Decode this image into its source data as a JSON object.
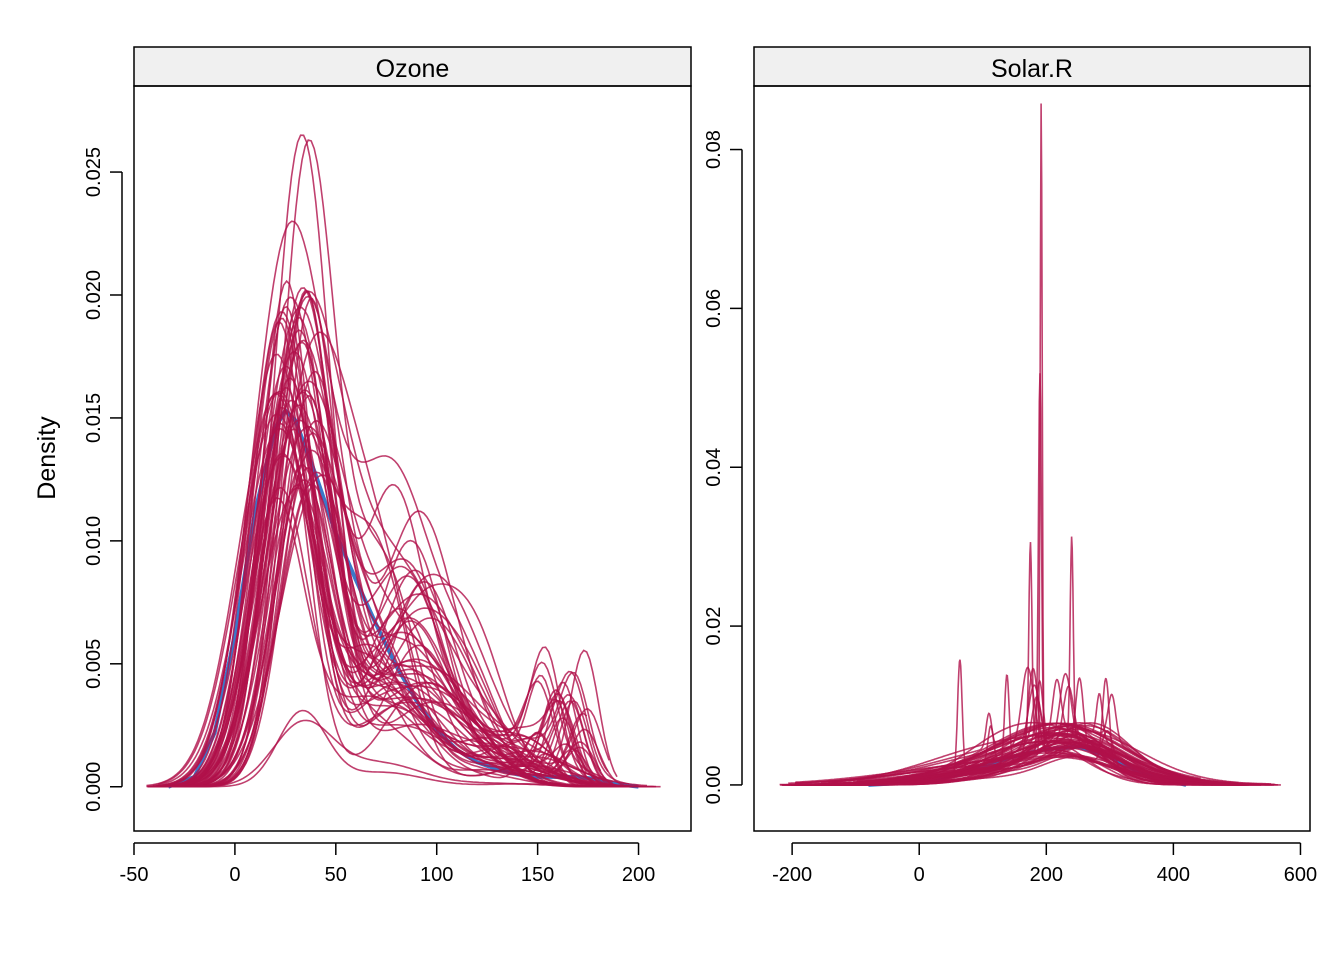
{
  "ylabel": "Density",
  "colors": {
    "imputed": "#B0104A",
    "observed": "#3A78C9",
    "strip_bg": "#F0F0F0"
  },
  "chart_data": [
    {
      "type": "line",
      "panel": "Ozone",
      "title": "Ozone",
      "ylabel": "Density",
      "xlim": [
        -50,
        226
      ],
      "ylim": [
        -0.0018,
        0.0285
      ],
      "x_ticks": [
        -50,
        0,
        50,
        100,
        150,
        200
      ],
      "x_tick_labels": [
        "-50",
        "0",
        "50",
        "100",
        "150",
        "200"
      ],
      "y_ticks": [
        0.0,
        0.005,
        0.01,
        0.015,
        0.02,
        0.025
      ],
      "y_tick_labels": [
        "0.000",
        "0.005",
        "0.010",
        "0.015",
        "0.020",
        "0.025"
      ],
      "n_imputed": 60,
      "observed": {
        "x": [
          -33,
          -20,
          -10,
          0,
          10,
          20,
          25,
          30,
          40,
          50,
          60,
          70,
          80,
          90,
          100,
          110,
          120,
          130,
          140,
          150,
          160,
          170,
          180,
          190,
          200
        ],
        "y": [
          0,
          0.0004,
          0.0022,
          0.0062,
          0.0112,
          0.0146,
          0.0153,
          0.0149,
          0.0127,
          0.0103,
          0.0084,
          0.0066,
          0.0049,
          0.0035,
          0.0023,
          0.0015,
          0.001,
          0.0007,
          0.0005,
          0.0004,
          0.0004,
          0.0004,
          0.0003,
          0.0001,
          0
        ]
      },
      "imputed_peaks": [
        {
          "x": 36,
          "y": 0.0265
        },
        {
          "x": 31,
          "y": 0.0263
        },
        {
          "x": 20,
          "y": 0.023
        },
        {
          "x": 45,
          "y": 0.0202
        },
        {
          "x": 168,
          "y": 0.0027
        },
        {
          "x": 135,
          "y": 0.0031
        }
      ]
    },
    {
      "type": "line",
      "panel": "Solar.R",
      "title": "Solar.R",
      "ylabel": "Density",
      "xlim": [
        -260,
        615
      ],
      "ylim": [
        -0.0058,
        0.088
      ],
      "x_ticks": [
        -200,
        0,
        200,
        400,
        600
      ],
      "x_tick_labels": [
        "-200",
        "0",
        "200",
        "400",
        "600"
      ],
      "y_ticks": [
        0.0,
        0.02,
        0.04,
        0.06,
        0.08
      ],
      "y_tick_labels": [
        "0.00",
        "0.02",
        "0.04",
        "0.06",
        "0.08"
      ],
      "n_imputed": 60,
      "observed": {
        "x": [
          -80,
          0,
          50,
          100,
          150,
          200,
          250,
          300,
          350,
          420
        ],
        "y": [
          0,
          0.0004,
          0.0012,
          0.0024,
          0.0036,
          0.0045,
          0.0048,
          0.0036,
          0.0014,
          0
        ]
      },
      "imputed_peaks": [
        {
          "x": 192,
          "y": 0.0822
        },
        {
          "x": 190,
          "y": 0.0475
        },
        {
          "x": 240,
          "y": 0.0253
        },
        {
          "x": 175,
          "y": 0.0248
        },
        {
          "x": 64,
          "y": 0.0145
        },
        {
          "x": 138,
          "y": 0.0112
        }
      ]
    }
  ]
}
